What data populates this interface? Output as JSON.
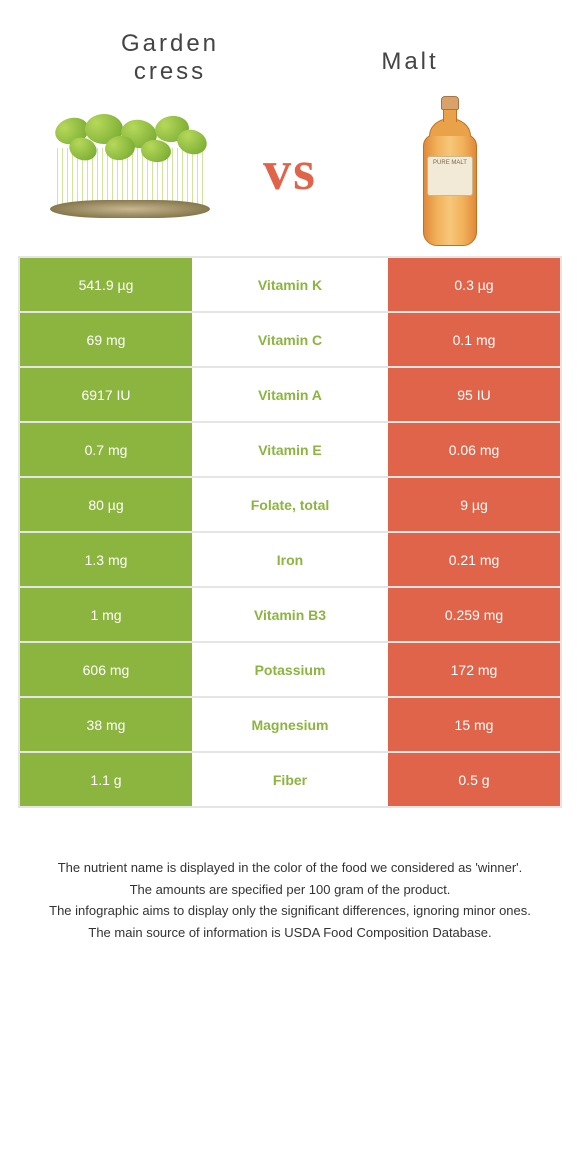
{
  "left_food": {
    "name": "Garden\ncress",
    "color": "#8bb53f"
  },
  "right_food": {
    "name": "Malt",
    "color": "#e06449"
  },
  "vs_label": "vs",
  "bottle_label": "PURE MALT",
  "rows": [
    {
      "left": "541.9 µg",
      "nutrient": "Vitamin K",
      "right": "0.3 µg",
      "winner": "left"
    },
    {
      "left": "69 mg",
      "nutrient": "Vitamin C",
      "right": "0.1 mg",
      "winner": "left"
    },
    {
      "left": "6917 IU",
      "nutrient": "Vitamin A",
      "right": "95 IU",
      "winner": "left"
    },
    {
      "left": "0.7 mg",
      "nutrient": "Vitamin E",
      "right": "0.06 mg",
      "winner": "left"
    },
    {
      "left": "80 µg",
      "nutrient": "Folate, total",
      "right": "9 µg",
      "winner": "left"
    },
    {
      "left": "1.3 mg",
      "nutrient": "Iron",
      "right": "0.21 mg",
      "winner": "left"
    },
    {
      "left": "1 mg",
      "nutrient": "Vitamin B3",
      "right": "0.259 mg",
      "winner": "left"
    },
    {
      "left": "606 mg",
      "nutrient": "Potassium",
      "right": "172 mg",
      "winner": "left"
    },
    {
      "left": "38 mg",
      "nutrient": "Magnesium",
      "right": "15 mg",
      "winner": "left"
    },
    {
      "left": "1.1 g",
      "nutrient": "Fiber",
      "right": "0.5 g",
      "winner": "left"
    }
  ],
  "footer": [
    "The nutrient name is displayed in the color of the food we considered as 'winner'.",
    "The amounts are specified per 100 gram of the product.",
    "The infographic aims to display only the significant differences, ignoring minor ones.",
    "The main source of information is USDA Food Composition Database."
  ]
}
